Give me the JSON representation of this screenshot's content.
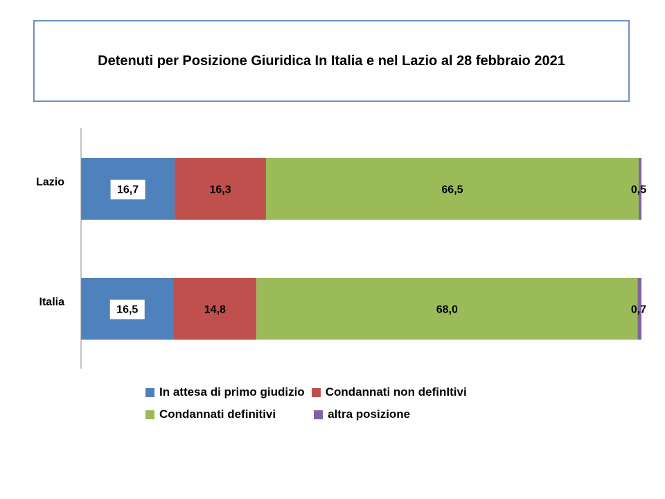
{
  "chart_data": {
    "type": "bar",
    "orientation": "horizontal",
    "stacked": true,
    "title": "Detenuti per Posizione Giuridica  In Italia e nel Lazio al 28 febbraio 2021",
    "categories": [
      "Lazio",
      "Italia"
    ],
    "series": [
      {
        "name": "In attesa di primo giudizio",
        "color": "#4f81bd",
        "values": [
          16.7,
          16.5
        ],
        "labels": [
          "16,7",
          "16,5"
        ]
      },
      {
        "name": "Condannati non definItivi",
        "color": "#c0504d",
        "values": [
          16.3,
          14.8
        ],
        "labels": [
          "16,3",
          "14,8"
        ]
      },
      {
        "name": "Condannati definitivi",
        "color": "#9bbb59",
        "values": [
          66.5,
          68.0
        ],
        "labels": [
          "66,5",
          "68,0"
        ]
      },
      {
        "name": "altra posizione",
        "color": "#8064a2",
        "values": [
          0.5,
          0.7
        ],
        "labels": [
          "0,5",
          "0,7"
        ]
      }
    ],
    "xlim": [
      0,
      100
    ],
    "grid": false,
    "legend_position": "bottom"
  }
}
